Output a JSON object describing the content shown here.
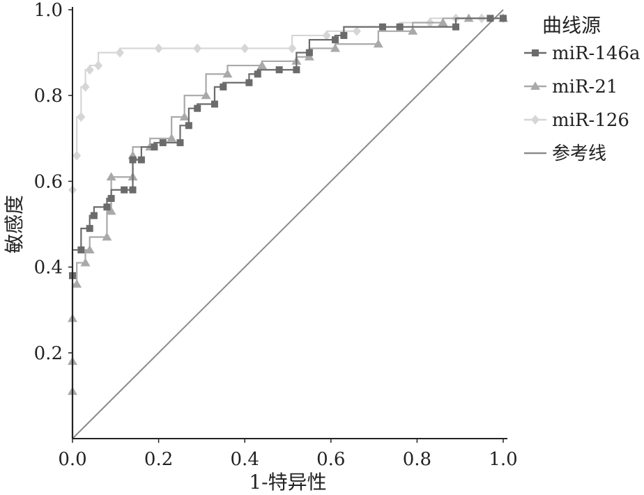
{
  "chart_data": {
    "type": "line",
    "xlabel": "1-特异性",
    "ylabel": "敏感度",
    "xlim": [
      0,
      1
    ],
    "ylim": [
      0,
      1
    ],
    "xticks": [
      "0.0",
      "0.2",
      "0.4",
      "0.6",
      "0.8",
      "1.0"
    ],
    "yticks": [
      "0.2",
      "0.4",
      "0.6",
      "0.8",
      "1.0"
    ],
    "legend": {
      "title": "曲线源",
      "position": "right",
      "entries": [
        "miR-146a",
        "miR-21",
        "miR-126",
        "参考线"
      ]
    },
    "series": [
      {
        "name": "miR-146a",
        "color": "#6b6b6b",
        "marker": "square",
        "x": [
          0.0,
          0.0,
          0.02,
          0.04,
          0.05,
          0.08,
          0.09,
          0.12,
          0.14,
          0.14,
          0.16,
          0.19,
          0.21,
          0.25,
          0.27,
          0.29,
          0.33,
          0.35,
          0.41,
          0.43,
          0.48,
          0.52,
          0.55,
          0.61,
          0.63,
          0.72,
          0.76,
          0.89,
          0.97,
          1.0
        ],
        "y": [
          0.0,
          0.38,
          0.44,
          0.49,
          0.52,
          0.54,
          0.56,
          0.58,
          0.58,
          0.65,
          0.65,
          0.68,
          0.69,
          0.69,
          0.73,
          0.77,
          0.78,
          0.82,
          0.83,
          0.85,
          0.86,
          0.86,
          0.9,
          0.93,
          0.94,
          0.96,
          0.96,
          0.96,
          0.98,
          0.98
        ]
      },
      {
        "name": "miR-21",
        "color": "#a9a9a9",
        "marker": "triangle",
        "x": [
          0.0,
          0.0,
          0.0,
          0.0,
          0.01,
          0.03,
          0.04,
          0.08,
          0.09,
          0.09,
          0.14,
          0.14,
          0.18,
          0.23,
          0.26,
          0.31,
          0.36,
          0.44,
          0.52,
          0.55,
          0.61,
          0.71,
          0.79,
          0.86,
          0.92,
          1.0
        ],
        "y": [
          0.0,
          0.11,
          0.18,
          0.28,
          0.36,
          0.41,
          0.44,
          0.47,
          0.53,
          0.61,
          0.61,
          0.66,
          0.68,
          0.7,
          0.75,
          0.8,
          0.85,
          0.87,
          0.88,
          0.89,
          0.91,
          0.92,
          0.95,
          0.97,
          0.98,
          0.98
        ]
      },
      {
        "name": "miR-126",
        "color": "#d6d6d6",
        "marker": "diamond",
        "x": [
          0.0,
          0.0,
          0.01,
          0.02,
          0.03,
          0.04,
          0.06,
          0.11,
          0.2,
          0.29,
          0.4,
          0.51,
          0.59,
          0.66,
          0.76,
          0.83,
          0.89,
          0.95,
          1.0
        ],
        "y": [
          0.0,
          0.58,
          0.66,
          0.75,
          0.82,
          0.86,
          0.87,
          0.9,
          0.91,
          0.91,
          0.91,
          0.91,
          0.94,
          0.95,
          0.96,
          0.97,
          0.98,
          0.98,
          0.98
        ]
      },
      {
        "name": "参考线",
        "color": "#8a8a8a",
        "marker": "none",
        "x": [
          0,
          1
        ],
        "y": [
          0,
          1
        ]
      }
    ]
  }
}
